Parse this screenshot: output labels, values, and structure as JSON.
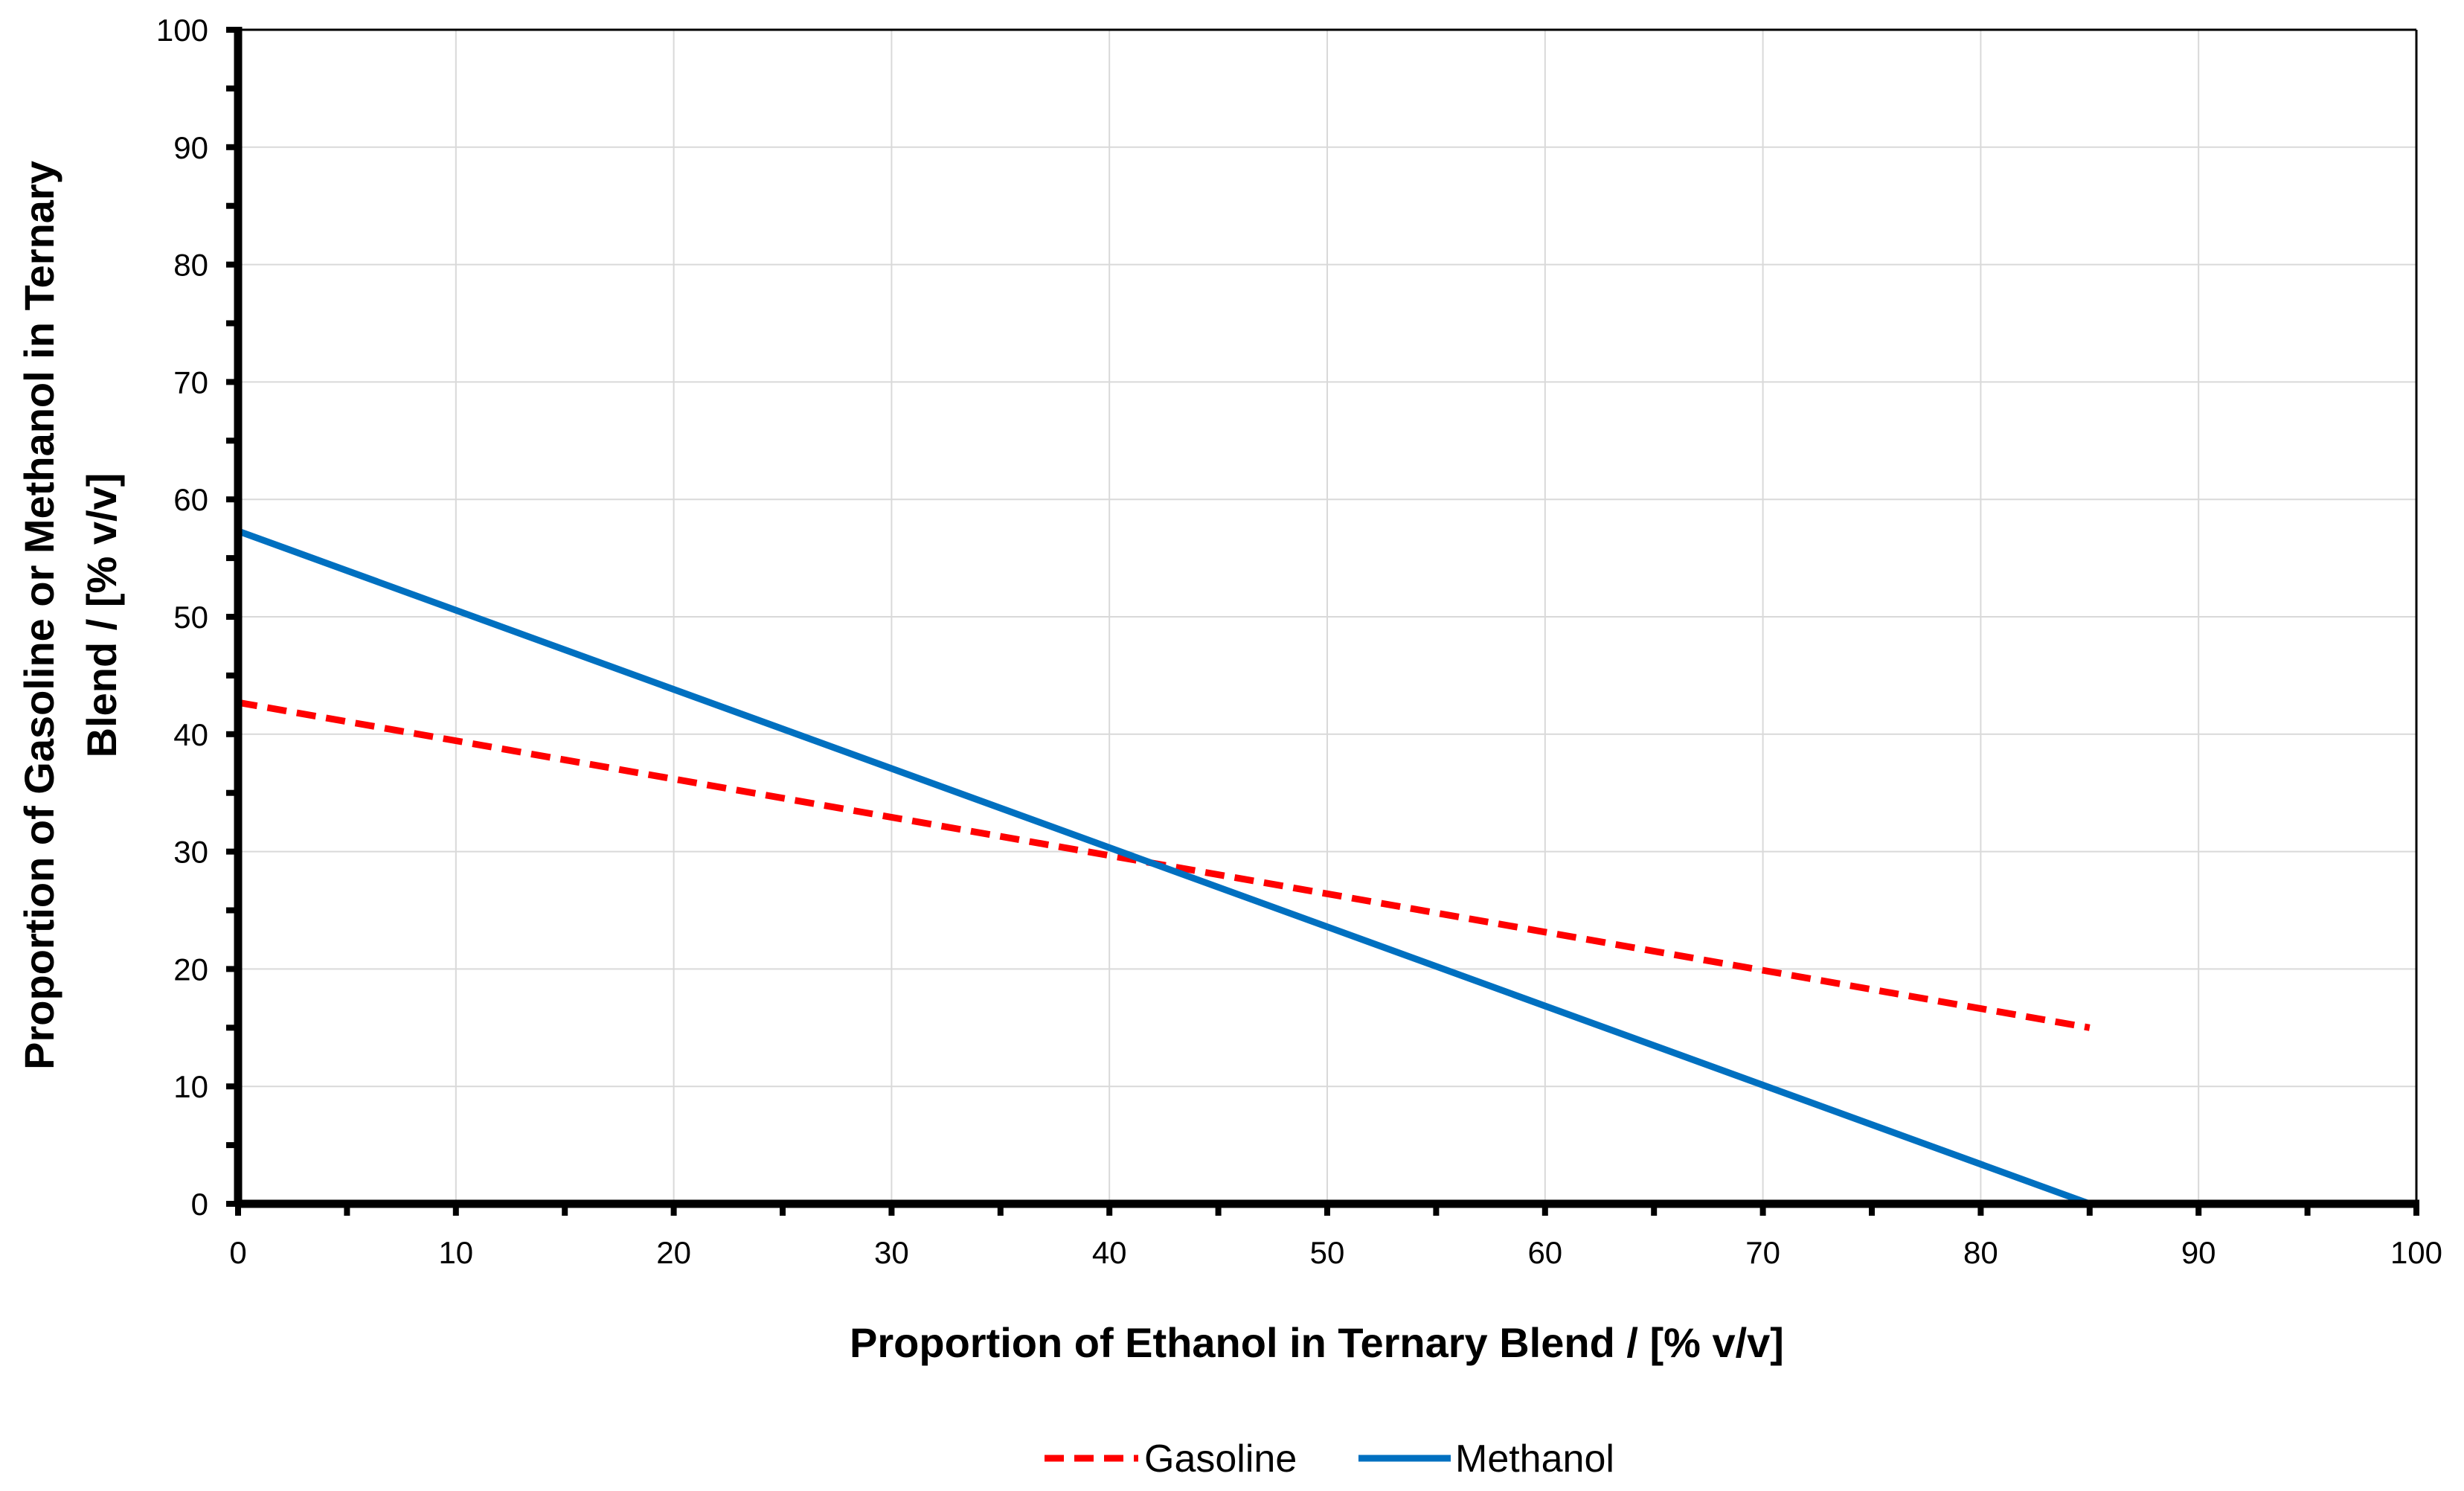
{
  "chart_data": {
    "type": "line",
    "title": "",
    "xlabel": "Proportion of Ethanol in Ternary Blend / [% v/v]",
    "ylabel_lines": [
      "Proportion of Gasoline or Methanol in Ternary",
      "Blend / [% v/v]"
    ],
    "xlim": [
      0,
      100
    ],
    "ylim": [
      0,
      100
    ],
    "x_ticks": [
      "0",
      "10",
      "20",
      "30",
      "40",
      "50",
      "60",
      "70",
      "80",
      "90",
      "100"
    ],
    "y_ticks": [
      "0",
      "10",
      "20",
      "30",
      "40",
      "50",
      "60",
      "70",
      "80",
      "90",
      "100"
    ],
    "grid": true,
    "legend_position": "bottom",
    "series": [
      {
        "name": "Gasoline",
        "color": "#ff0000",
        "style": "dashed",
        "x": [
          0,
          85
        ],
        "y": [
          42.7,
          15
        ]
      },
      {
        "name": "Methanol",
        "color": "#0070c0",
        "style": "solid",
        "x": [
          0,
          85
        ],
        "y": [
          57.3,
          0
        ]
      }
    ]
  }
}
